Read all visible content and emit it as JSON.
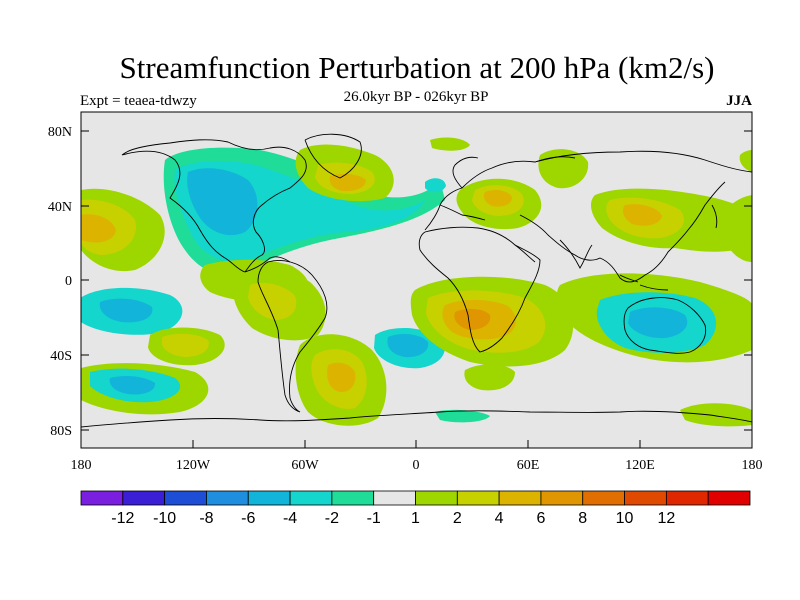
{
  "header": {
    "title": "Streamfunction Perturbation at 200 hPa (km2/s)",
    "subtitle": "26.0kyr BP - 026kyr BP",
    "left_label": "Expt = teaea-tdwzy",
    "right_label": "JJA"
  },
  "axes": {
    "lat_ticks": [
      "80N",
      "40N",
      "0",
      "40S",
      "80S"
    ],
    "lon_ticks": [
      "180",
      "120W",
      "60W",
      "0",
      "60E",
      "120E",
      "180"
    ]
  },
  "colorbar": {
    "colors": [
      "#7a1fe0",
      "#3a1fd6",
      "#1f4ed6",
      "#1f8ede",
      "#12b5d9",
      "#14d6cc",
      "#1fdc99",
      "#e6e6e6",
      "#9ed600",
      "#c8d100",
      "#dcb400",
      "#e09600",
      "#e06e00",
      "#e04a00",
      "#e02800",
      "#e00000"
    ],
    "labels": [
      "-12",
      "-10",
      "-8",
      "-6",
      "-4",
      "-2",
      "-1",
      "1",
      "2",
      "4",
      "6",
      "8",
      "10",
      "12"
    ]
  },
  "field_blobs": [
    {
      "region": "eastern-pacific-north",
      "lon": -150,
      "lat": 30,
      "level": 2
    },
    {
      "region": "north-america",
      "lon": -105,
      "lat": 52,
      "level": -4
    },
    {
      "region": "north-atlantic",
      "lon": -40,
      "lat": 52,
      "level": 4
    },
    {
      "region": "europe",
      "lon": 45,
      "lat": 45,
      "level": 4
    },
    {
      "region": "east-asia",
      "lon": 120,
      "lat": 35,
      "level": 4
    },
    {
      "region": "south-america",
      "lon": -60,
      "lat": -10,
      "level": 2
    },
    {
      "region": "south-atlantic",
      "lon": -35,
      "lat": -48,
      "level": 4
    },
    {
      "region": "southern-africa",
      "lon": 30,
      "lat": -22,
      "level": 6
    },
    {
      "region": "australia",
      "lon": 135,
      "lat": -25,
      "level": -4
    },
    {
      "region": "south-pacific",
      "lon": -165,
      "lat": -15,
      "level": -4
    }
  ]
}
